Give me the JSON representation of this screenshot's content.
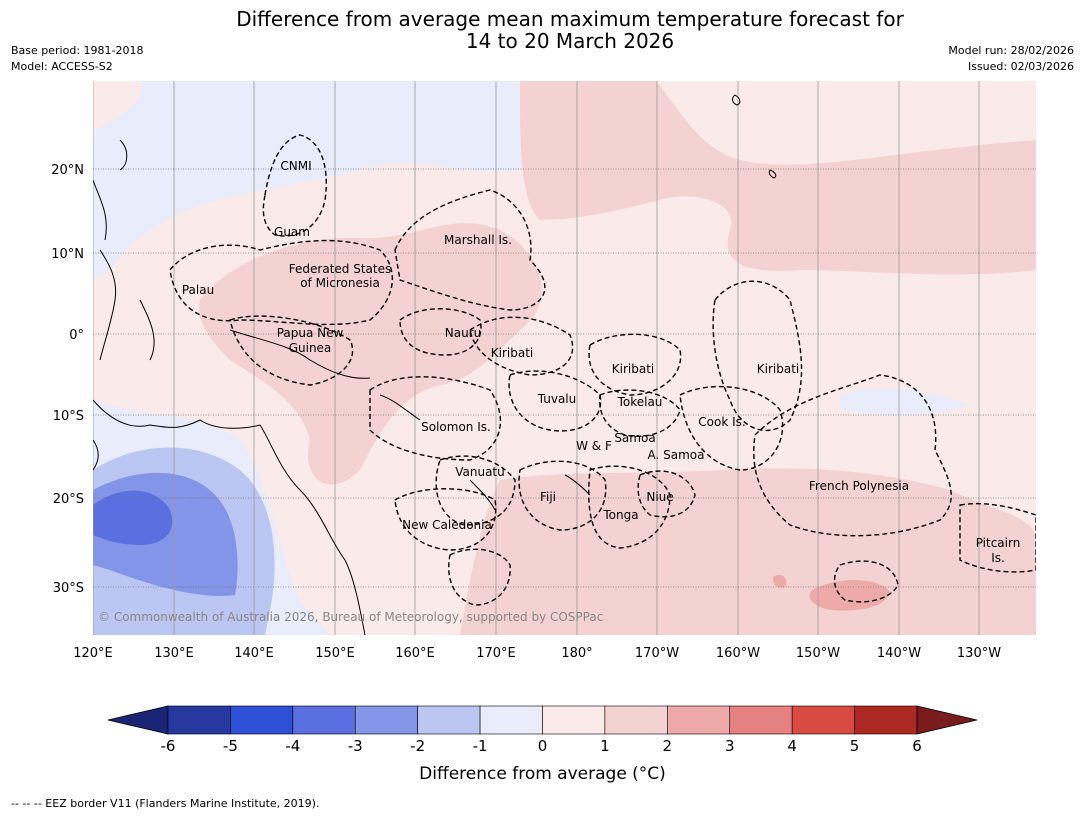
{
  "header": {
    "title_line1": "Difference from average mean maximum temperature forecast for",
    "title_line2": "14 to 20 March 2026",
    "base_period": "Base period: 1981-2018",
    "model": "Model: ACCESS-S2",
    "model_run": "Model run: 28/02/2026",
    "issued": "Issued: 02/03/2026"
  },
  "map": {
    "copyright": "© Commonwealth of Australia 2026, Bureau of Meteorology, supported by COSPPac",
    "lon_labels": [
      "120°E",
      "130°E",
      "140°E",
      "150°E",
      "160°E",
      "170°E",
      "180°",
      "170°W",
      "160°W",
      "150°W",
      "140°W",
      "130°W"
    ],
    "lat_labels": [
      "20°N",
      "10°N",
      "0°",
      "10°S",
      "20°S",
      "30°S"
    ],
    "regions": [
      "CNMI",
      "Guam",
      "Marshall Is.",
      "Federated States",
      "of Micronesia",
      "Palau",
      "Papua New",
      "Guinea",
      "Nauru",
      "Kiribati",
      "Kiribati",
      "Kiribati",
      "Tuvalu",
      "Tokelau",
      "Cook Is.",
      "Solomon Is.",
      "Samoa",
      "W & F",
      "A. Samoa",
      "Vanuatu",
      "Fiji",
      "Niue",
      "Tonga",
      "French Polynesia",
      "New Caledonia",
      "Pitcairn",
      "Is."
    ]
  },
  "colorbar": {
    "ticks": [
      "-6",
      "-5",
      "-4",
      "-3",
      "-2",
      "-1",
      "0",
      "1",
      "2",
      "3",
      "4",
      "5",
      "6"
    ],
    "colors": [
      "#27389e",
      "#3050d8",
      "#5a6fe0",
      "#8395e8",
      "#bcc6f2",
      "#e8ecfb",
      "#fbeaea",
      "#f4d2d2",
      "#edaaa8",
      "#e58180",
      "#d94a42",
      "#ac2a23"
    ],
    "low_extend_color": "#1c2575",
    "high_extend_color": "#7a1c1c",
    "label": "Difference from average (°C)"
  },
  "footnote": "--  --  -- EEZ border V11 (Flanders Marine Institute, 2019)."
}
